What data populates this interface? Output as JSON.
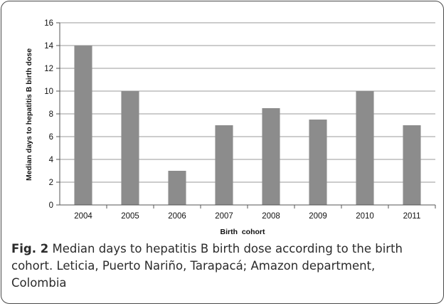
{
  "chart_data": {
    "type": "bar",
    "categories": [
      "2004",
      "2005",
      "2006",
      "2007",
      "2008",
      "2009",
      "2010",
      "2011"
    ],
    "values": [
      14,
      10,
      3,
      7,
      8.5,
      7.5,
      10,
      7
    ],
    "xlabel": "Birth  cohort",
    "ylabel": "Median days to hepatitis B birth dose",
    "ylim": [
      0,
      16
    ],
    "yticks": [
      "0",
      "2",
      "4",
      "6",
      "8",
      "10",
      "12",
      "14",
      "16"
    ],
    "grid": true,
    "bar_color": "#8c8c8c"
  },
  "caption": {
    "figure_label": "Fig. 2",
    "text": " Median days to hepatitis B birth dose according to the birth cohort. Leticia, Puerto Nariño, Tarapacá; Amazon department, Colombia"
  }
}
